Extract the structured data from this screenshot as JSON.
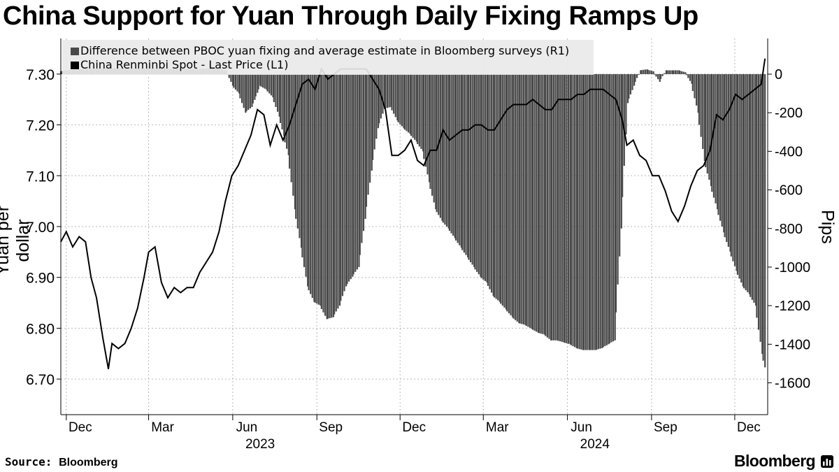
{
  "title": "China Support for Yuan Through Daily Fixing Ramps Up",
  "footer": {
    "source_label": "Source:",
    "source_value": "Bloomberg",
    "brand": "Bloomberg"
  },
  "colors": {
    "bars": "#4a4a4a",
    "line": "#000000",
    "grid": "#b8b8b8",
    "legend_bg": "#e9e9e9"
  },
  "chart_data": {
    "type": "bar+line",
    "ylabel_left": "Yuan per dollar",
    "ylabel_right": "Pips",
    "left_axis": {
      "ticks": [
        "7.30",
        "7.20",
        "7.10",
        "7.00",
        "6.90",
        "6.80",
        "6.70"
      ],
      "ylim": [
        6.63,
        7.37
      ]
    },
    "right_axis": {
      "ticks": [
        "0",
        "-200",
        "-400",
        "-600",
        "-800",
        "-1000",
        "-1200",
        "-1400",
        "-1600"
      ],
      "ylim": [
        -1765,
        185
      ]
    },
    "x_ticks": [
      "Dec",
      "Mar",
      "Jun",
      "Sep",
      "Dec",
      "Mar",
      "Jun",
      "Sep",
      "Dec"
    ],
    "x_tick_dates": [
      "2022-12-01",
      "2023-03-01",
      "2023-06-01",
      "2023-09-01",
      "2023-12-01",
      "2024-03-01",
      "2024-06-01",
      "2024-09-01",
      "2024-12-01"
    ],
    "year_labels": [
      {
        "label": "2023",
        "date": "2023-07-01"
      },
      {
        "label": "2024",
        "date": "2024-07-01"
      }
    ],
    "xlim": [
      "2022-11-25",
      "2025-01-06"
    ],
    "grid": true,
    "legend_position": "top-left",
    "series": [
      {
        "name": "Difference between PBOC yuan fixing and average estimate in Bloomberg surveys (R1)",
        "type": "bar",
        "axis": "right",
        "points": [
          [
            "2022-11-25",
            15
          ],
          [
            "2022-12-15",
            25
          ],
          [
            "2023-01-15",
            30
          ],
          [
            "2023-02-15",
            30
          ],
          [
            "2023-03-15",
            30
          ],
          [
            "2023-04-15",
            25
          ],
          [
            "2023-05-15",
            30
          ],
          [
            "2023-05-25",
            20
          ],
          [
            "2023-06-01",
            -60
          ],
          [
            "2023-06-08",
            -100
          ],
          [
            "2023-06-15",
            -200
          ],
          [
            "2023-06-22",
            -170
          ],
          [
            "2023-07-01",
            -60
          ],
          [
            "2023-07-08",
            -80
          ],
          [
            "2023-07-15",
            -120
          ],
          [
            "2023-07-22",
            -220
          ],
          [
            "2023-08-01",
            -420
          ],
          [
            "2023-08-08",
            -700
          ],
          [
            "2023-08-15",
            -900
          ],
          [
            "2023-08-22",
            -1100
          ],
          [
            "2023-08-29",
            -1180
          ],
          [
            "2023-09-05",
            -1200
          ],
          [
            "2023-09-12",
            -1270
          ],
          [
            "2023-09-19",
            -1260
          ],
          [
            "2023-09-26",
            -1200
          ],
          [
            "2023-10-03",
            -1100
          ],
          [
            "2023-10-10",
            -1050
          ],
          [
            "2023-10-17",
            -1000
          ],
          [
            "2023-10-24",
            -750
          ],
          [
            "2023-10-31",
            -500
          ],
          [
            "2023-11-07",
            -280
          ],
          [
            "2023-11-14",
            -180
          ],
          [
            "2023-11-21",
            -170
          ],
          [
            "2023-11-28",
            -240
          ],
          [
            "2023-12-05",
            -280
          ],
          [
            "2023-12-12",
            -310
          ],
          [
            "2023-12-19",
            -350
          ],
          [
            "2023-12-26",
            -400
          ],
          [
            "2024-01-02",
            -560
          ],
          [
            "2024-01-09",
            -700
          ],
          [
            "2024-01-16",
            -760
          ],
          [
            "2024-01-23",
            -800
          ],
          [
            "2024-01-30",
            -850
          ],
          [
            "2024-02-06",
            -900
          ],
          [
            "2024-02-13",
            -950
          ],
          [
            "2024-02-20",
            -1000
          ],
          [
            "2024-02-27",
            -1050
          ],
          [
            "2024-03-05",
            -1080
          ],
          [
            "2024-03-12",
            -1150
          ],
          [
            "2024-03-19",
            -1180
          ],
          [
            "2024-03-26",
            -1220
          ],
          [
            "2024-04-02",
            -1260
          ],
          [
            "2024-04-09",
            -1290
          ],
          [
            "2024-04-16",
            -1300
          ],
          [
            "2024-04-23",
            -1320
          ],
          [
            "2024-04-30",
            -1340
          ],
          [
            "2024-05-07",
            -1350
          ],
          [
            "2024-05-14",
            -1380
          ],
          [
            "2024-05-21",
            -1380
          ],
          [
            "2024-05-28",
            -1390
          ],
          [
            "2024-06-04",
            -1400
          ],
          [
            "2024-06-11",
            -1420
          ],
          [
            "2024-06-18",
            -1430
          ],
          [
            "2024-06-25",
            -1430
          ],
          [
            "2024-07-02",
            -1430
          ],
          [
            "2024-07-09",
            -1420
          ],
          [
            "2024-07-16",
            -1400
          ],
          [
            "2024-07-23",
            -1380
          ],
          [
            "2024-07-30",
            -800
          ],
          [
            "2024-08-06",
            -150
          ],
          [
            "2024-08-13",
            -60
          ],
          [
            "2024-08-20",
            20
          ],
          [
            "2024-08-27",
            25
          ],
          [
            "2024-09-03",
            15
          ],
          [
            "2024-09-10",
            -40
          ],
          [
            "2024-09-17",
            20
          ],
          [
            "2024-09-24",
            20
          ],
          [
            "2024-10-01",
            20
          ],
          [
            "2024-10-08",
            10
          ],
          [
            "2024-10-15",
            -50
          ],
          [
            "2024-10-22",
            -200
          ],
          [
            "2024-10-29",
            -450
          ],
          [
            "2024-11-05",
            -580
          ],
          [
            "2024-11-12",
            -700
          ],
          [
            "2024-11-19",
            -820
          ],
          [
            "2024-11-26",
            -920
          ],
          [
            "2024-12-03",
            -1020
          ],
          [
            "2024-12-10",
            -1100
          ],
          [
            "2024-12-17",
            -1140
          ],
          [
            "2024-12-24",
            -1200
          ],
          [
            "2024-12-31",
            -1450
          ],
          [
            "2025-01-03",
            -1520
          ]
        ]
      },
      {
        "name": "China Renminbi Spot - Last Price (L1)",
        "type": "line",
        "axis": "left",
        "points": [
          [
            "2022-11-25",
            6.97
          ],
          [
            "2022-12-01",
            6.99
          ],
          [
            "2022-12-08",
            6.96
          ],
          [
            "2022-12-15",
            6.98
          ],
          [
            "2022-12-22",
            6.97
          ],
          [
            "2022-12-28",
            6.9
          ],
          [
            "2023-01-03",
            6.86
          ],
          [
            "2023-01-10",
            6.78
          ],
          [
            "2023-01-16",
            6.72
          ],
          [
            "2023-01-20",
            6.77
          ],
          [
            "2023-01-27",
            6.76
          ],
          [
            "2023-02-03",
            6.77
          ],
          [
            "2023-02-10",
            6.8
          ],
          [
            "2023-02-17",
            6.84
          ],
          [
            "2023-02-24",
            6.9
          ],
          [
            "2023-03-01",
            6.95
          ],
          [
            "2023-03-08",
            6.96
          ],
          [
            "2023-03-15",
            6.89
          ],
          [
            "2023-03-22",
            6.86
          ],
          [
            "2023-03-29",
            6.88
          ],
          [
            "2023-04-05",
            6.87
          ],
          [
            "2023-04-12",
            6.88
          ],
          [
            "2023-04-19",
            6.88
          ],
          [
            "2023-04-26",
            6.91
          ],
          [
            "2023-05-03",
            6.93
          ],
          [
            "2023-05-10",
            6.95
          ],
          [
            "2023-05-17",
            6.99
          ],
          [
            "2023-05-24",
            7.05
          ],
          [
            "2023-05-31",
            7.1
          ],
          [
            "2023-06-07",
            7.12
          ],
          [
            "2023-06-14",
            7.15
          ],
          [
            "2023-06-21",
            7.18
          ],
          [
            "2023-06-28",
            7.23
          ],
          [
            "2023-07-05",
            7.22
          ],
          [
            "2023-07-12",
            7.16
          ],
          [
            "2023-07-19",
            7.2
          ],
          [
            "2023-07-26",
            7.17
          ],
          [
            "2023-08-02",
            7.2
          ],
          [
            "2023-08-09",
            7.24
          ],
          [
            "2023-08-16",
            7.28
          ],
          [
            "2023-08-23",
            7.29
          ],
          [
            "2023-08-30",
            7.27
          ],
          [
            "2023-09-06",
            7.31
          ],
          [
            "2023-09-13",
            7.29
          ],
          [
            "2023-09-20",
            7.3
          ],
          [
            "2023-09-27",
            7.31
          ],
          [
            "2023-10-04",
            7.31
          ],
          [
            "2023-10-11",
            7.31
          ],
          [
            "2023-10-18",
            7.31
          ],
          [
            "2023-10-25",
            7.31
          ],
          [
            "2023-11-01",
            7.29
          ],
          [
            "2023-11-08",
            7.27
          ],
          [
            "2023-11-15",
            7.23
          ],
          [
            "2023-11-22",
            7.14
          ],
          [
            "2023-11-29",
            7.14
          ],
          [
            "2023-12-06",
            7.15
          ],
          [
            "2023-12-13",
            7.17
          ],
          [
            "2023-12-20",
            7.13
          ],
          [
            "2023-12-27",
            7.12
          ],
          [
            "2024-01-03",
            7.15
          ],
          [
            "2024-01-10",
            7.15
          ],
          [
            "2024-01-17",
            7.19
          ],
          [
            "2024-01-24",
            7.17
          ],
          [
            "2024-01-31",
            7.18
          ],
          [
            "2024-02-07",
            7.19
          ],
          [
            "2024-02-14",
            7.19
          ],
          [
            "2024-02-21",
            7.2
          ],
          [
            "2024-02-28",
            7.2
          ],
          [
            "2024-03-06",
            7.19
          ],
          [
            "2024-03-13",
            7.19
          ],
          [
            "2024-03-20",
            7.21
          ],
          [
            "2024-03-27",
            7.23
          ],
          [
            "2024-04-03",
            7.24
          ],
          [
            "2024-04-10",
            7.24
          ],
          [
            "2024-04-17",
            7.24
          ],
          [
            "2024-04-24",
            7.25
          ],
          [
            "2024-05-01",
            7.24
          ],
          [
            "2024-05-08",
            7.23
          ],
          [
            "2024-05-15",
            7.23
          ],
          [
            "2024-05-22",
            7.25
          ],
          [
            "2024-05-29",
            7.25
          ],
          [
            "2024-06-05",
            7.25
          ],
          [
            "2024-06-12",
            7.26
          ],
          [
            "2024-06-19",
            7.26
          ],
          [
            "2024-06-26",
            7.27
          ],
          [
            "2024-07-03",
            7.27
          ],
          [
            "2024-07-10",
            7.27
          ],
          [
            "2024-07-17",
            7.26
          ],
          [
            "2024-07-24",
            7.25
          ],
          [
            "2024-07-31",
            7.21
          ],
          [
            "2024-08-05",
            7.16
          ],
          [
            "2024-08-12",
            7.17
          ],
          [
            "2024-08-19",
            7.14
          ],
          [
            "2024-08-26",
            7.13
          ],
          [
            "2024-09-02",
            7.1
          ],
          [
            "2024-09-09",
            7.1
          ],
          [
            "2024-09-16",
            7.07
          ],
          [
            "2024-09-23",
            7.03
          ],
          [
            "2024-09-30",
            7.01
          ],
          [
            "2024-10-07",
            7.04
          ],
          [
            "2024-10-14",
            7.08
          ],
          [
            "2024-10-21",
            7.11
          ],
          [
            "2024-10-28",
            7.12
          ],
          [
            "2024-11-04",
            7.15
          ],
          [
            "2024-11-11",
            7.22
          ],
          [
            "2024-11-18",
            7.21
          ],
          [
            "2024-11-25",
            7.23
          ],
          [
            "2024-12-02",
            7.26
          ],
          [
            "2024-12-09",
            7.25
          ],
          [
            "2024-12-16",
            7.26
          ],
          [
            "2024-12-23",
            7.27
          ],
          [
            "2024-12-30",
            7.28
          ],
          [
            "2025-01-03",
            7.33
          ]
        ]
      }
    ]
  }
}
